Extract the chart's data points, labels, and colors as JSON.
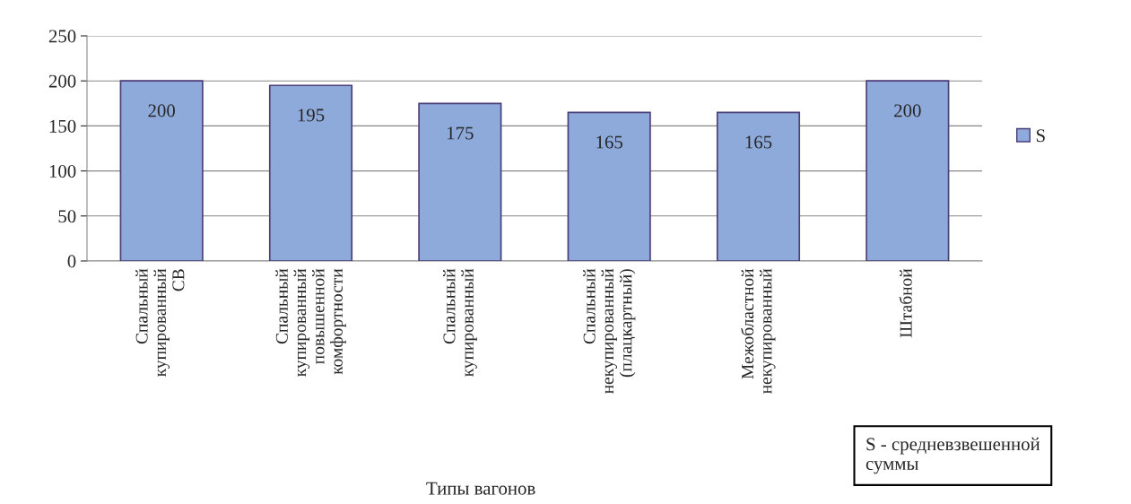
{
  "chart_data": {
    "type": "bar",
    "xlabel": "Типы вагонов",
    "categories": [
      "Спальный\nкупированный\nСВ",
      "Спальный\nкупированный\nповышенной\nкомфортности",
      "Спальный\nкупированный",
      "Спальный\nнекупированный\n(плацкартный)",
      "Межобластной\nнекупированный",
      "Штабной"
    ],
    "series": [
      {
        "name": "S",
        "color": "#8eaadb",
        "values": [
          200,
          195,
          175,
          165,
          165,
          200
        ]
      }
    ],
    "ylim": [
      0,
      250
    ],
    "yticks": [
      0,
      50,
      100,
      150,
      200,
      250
    ],
    "grid": "y",
    "legend": "right",
    "data_labels": true,
    "annotations": [
      "S - средневзвешенной\nсуммы"
    ]
  }
}
